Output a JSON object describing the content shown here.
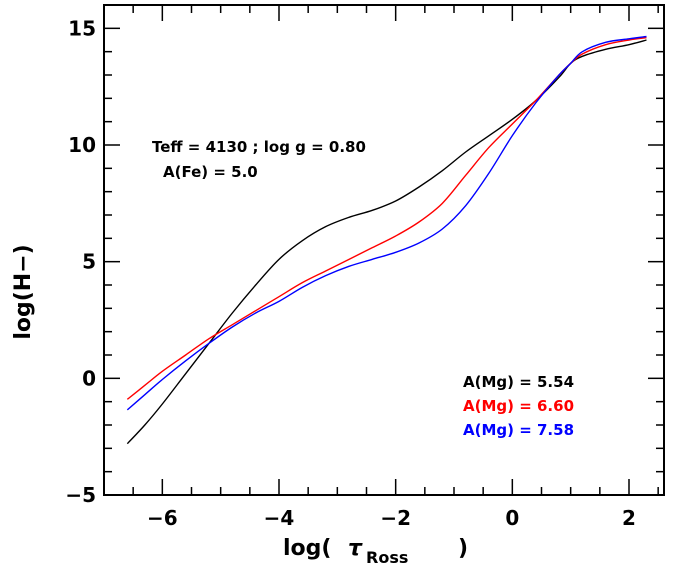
{
  "chart_data": {
    "type": "line",
    "title": "",
    "xlabel": "log( τRoss )",
    "xlabel_main": "log(",
    "xlabel_tau": "τ",
    "xlabel_sub": "Ross",
    "xlabel_close": ")",
    "ylabel": "log(H−)",
    "xlim": [
      -7.0,
      2.6
    ],
    "ylim": [
      -5,
      16
    ],
    "xticks": [
      -6,
      -4,
      -2,
      0,
      2
    ],
    "xtick_labels": [
      "−6",
      "−4",
      "−2",
      "0",
      "2"
    ],
    "yticks": [
      -5,
      0,
      5,
      10,
      15
    ],
    "ytick_labels": [
      "−5",
      "0",
      "5",
      "10",
      "15"
    ],
    "grid": false,
    "legend_position": "lower-right",
    "annotations": [
      "Teff = 4130 ; log g = 0.80",
      "A(Fe) = 5.0"
    ],
    "series": [
      {
        "name": "A(Mg) = 5.54",
        "color": "#000000",
        "x": [
          -6.6,
          -6.3,
          -6.0,
          -5.6,
          -5.2,
          -4.8,
          -4.4,
          -4.0,
          -3.6,
          -3.2,
          -2.8,
          -2.4,
          -2.0,
          -1.6,
          -1.2,
          -0.8,
          -0.4,
          0.0,
          0.4,
          0.8,
          1.0,
          1.2,
          1.6,
          2.0,
          2.3
        ],
        "y": [
          -2.8,
          -2.0,
          -1.1,
          0.2,
          1.5,
          2.8,
          4.0,
          5.1,
          5.9,
          6.5,
          6.9,
          7.2,
          7.6,
          8.2,
          8.9,
          9.7,
          10.4,
          11.1,
          11.9,
          12.9,
          13.5,
          13.8,
          14.1,
          14.3,
          14.5
        ]
      },
      {
        "name": "A(Mg) = 6.60",
        "color": "#ff0000",
        "x": [
          -6.6,
          -6.3,
          -6.0,
          -5.6,
          -5.2,
          -4.8,
          -4.4,
          -4.0,
          -3.6,
          -3.2,
          -2.8,
          -2.4,
          -2.0,
          -1.6,
          -1.2,
          -0.8,
          -0.4,
          0.0,
          0.4,
          0.8,
          1.0,
          1.2,
          1.6,
          2.0,
          2.3
        ],
        "y": [
          -0.9,
          -0.3,
          0.3,
          1.0,
          1.7,
          2.3,
          2.9,
          3.5,
          4.1,
          4.6,
          5.1,
          5.6,
          6.1,
          6.7,
          7.5,
          8.7,
          9.9,
          10.9,
          11.9,
          13.0,
          13.5,
          13.9,
          14.3,
          14.5,
          14.6
        ]
      },
      {
        "name": "A(Mg) = 7.58",
        "color": "#0000ff",
        "x": [
          -6.6,
          -6.3,
          -6.0,
          -5.6,
          -5.2,
          -4.8,
          -4.4,
          -4.0,
          -3.6,
          -3.2,
          -2.8,
          -2.4,
          -2.0,
          -1.6,
          -1.2,
          -0.8,
          -0.4,
          0.0,
          0.4,
          0.8,
          1.0,
          1.2,
          1.6,
          2.0,
          2.3
        ],
        "y": [
          -1.35,
          -0.7,
          -0.05,
          0.75,
          1.5,
          2.2,
          2.8,
          3.3,
          3.9,
          4.4,
          4.8,
          5.1,
          5.4,
          5.8,
          6.4,
          7.4,
          8.8,
          10.4,
          11.8,
          13.0,
          13.5,
          14.0,
          14.4,
          14.55,
          14.65
        ]
      }
    ]
  }
}
